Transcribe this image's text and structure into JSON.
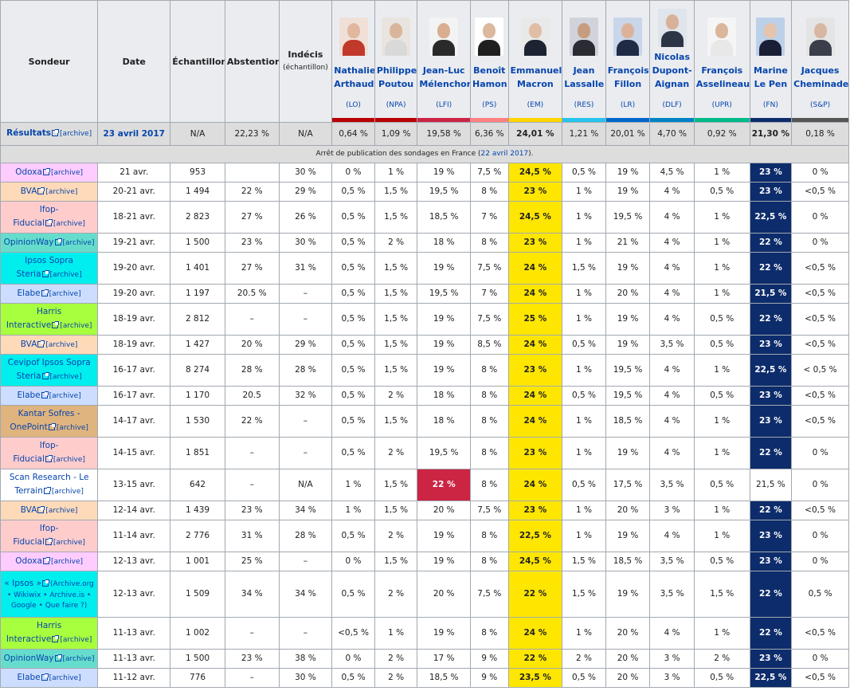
{
  "header": {
    "sondeur": "Sondeur",
    "date": "Date",
    "echantillon": "Échantillon",
    "abstention": "Abstention",
    "indecis": "Indécis",
    "indecis_sub": "(échantillon)"
  },
  "candidates": [
    {
      "first": "Nathalie",
      "last": "Arthaud",
      "party": "(LO)",
      "color": "#bb0000",
      "skin": "#e2b7a0",
      "clothes": "#c0392b",
      "bg": "#f0e0d8"
    },
    {
      "first": "Philippe",
      "last": "Poutou",
      "party": "(NPA)",
      "color": "#bb0000",
      "skin": "#d8b59b",
      "clothes": "#d9d9d9",
      "bg": "#e9e4df"
    },
    {
      "first": "Jean-Luc",
      "last": "Mélenchon",
      "party": "(LFI)",
      "color": "#cc2443",
      "skin": "#d9ad90",
      "clothes": "#2a2a2a",
      "bg": "#f3f3f3"
    },
    {
      "first": "Benoît",
      "last": "Hamon",
      "party": "(PS)",
      "color": "#ff8080",
      "skin": "#dcb89e",
      "clothes": "#1f1f1f",
      "bg": "#ffffff"
    },
    {
      "first": "Emmanuel",
      "last": "Macron",
      "party": "(EM)",
      "color": "#ffd600",
      "skin": "#e0bda5",
      "clothes": "#1c2433",
      "bg": "#e9e9e9"
    },
    {
      "first": "Jean",
      "last": "Lassalle",
      "party": "(RES)",
      "color": "#26c4ec",
      "skin": "#c89c80",
      "clothes": "#2b2b33",
      "bg": "#d0d4da"
    },
    {
      "first": "François",
      "last": "Fillon",
      "party": "(LR)",
      "color": "#0066cc",
      "skin": "#dcb39a",
      "clothes": "#1f2a44",
      "bg": "#c9d6ea"
    },
    {
      "first": "Nicolas",
      "last": "Dupont-Aignan",
      "party": "(DLF)",
      "color": "#0082c4",
      "skin": "#d9b199",
      "clothes": "#2c3546",
      "bg": "#dfe5ea"
    },
    {
      "first": "François",
      "last": "Asselineau",
      "party": "(UPR)",
      "color": "#00bb88",
      "skin": "#dbb69c",
      "clothes": "#e8e8e8",
      "bg": "#f5f5f5"
    },
    {
      "first": "Marine",
      "last": "Le Pen",
      "party": "(FN)",
      "color": "#0d2c6b",
      "skin": "#e6c3ab",
      "clothes": "#1a1f36",
      "bg": "#bcd0e8"
    },
    {
      "first": "Jacques",
      "last": "Cheminade",
      "party": "(S&P)",
      "color": "#555555",
      "skin": "#d8b7a2",
      "clothes": "#3a3f4a",
      "bg": "#e4e4e4"
    }
  ],
  "results": {
    "label": "Résultats",
    "archive": "[archive]",
    "date": "23 avril 2017",
    "echantillon": "N/A",
    "abstention": "22,23 %",
    "indecis": "N/A",
    "values": [
      "0,64 %",
      "1,09 %",
      "19,58 %",
      "6,36 %",
      "24,01 %",
      "1,21 %",
      "20,01 %",
      "4,70 %",
      "0,92 %",
      "21,30 %",
      "0,18 %"
    ]
  },
  "note": {
    "text": "Arrêt de publication des sondages en France (",
    "link": "22 avril 2017",
    "end": ")."
  },
  "archive_label": "[archive]",
  "rows": [
    {
      "p1": "Odoxa",
      "p2": "",
      "bg": "#ffccff",
      "date": "21 avr.",
      "n": "953",
      "abs": "",
      "ind": "30 %",
      "v": [
        "0 %",
        "1 %",
        "19 %",
        "7,5 %",
        "24,5 %",
        "0,5 %",
        "19 %",
        "4,5 %",
        "1 %",
        "23 %",
        "0 %"
      ],
      "hi": [
        [
          4,
          "ylw"
        ],
        [
          9,
          "blu"
        ]
      ]
    },
    {
      "p1": "BVA",
      "p2": "",
      "bg": "#ffdab9",
      "date": "20-21 avr.",
      "n": "1 494",
      "abs": "22 %",
      "ind": "29 %",
      "v": [
        "0,5 %",
        "1,5 %",
        "19,5 %",
        "8 %",
        "23 %",
        "1 %",
        "19 %",
        "4 %",
        "0,5 %",
        "23 %",
        "<0,5 %"
      ],
      "hi": [
        [
          4,
          "ylw"
        ],
        [
          9,
          "blu"
        ]
      ]
    },
    {
      "p1": "Ifop-",
      "p2": "Fiducial",
      "bg": "#ffcccc",
      "date": "18-21 avr.",
      "n": "2 823",
      "abs": "27 %",
      "ind": "26 %",
      "v": [
        "0,5 %",
        "1,5 %",
        "18,5 %",
        "7 %",
        "24,5 %",
        "1 %",
        "19,5 %",
        "4 %",
        "1 %",
        "22,5 %",
        "0 %"
      ],
      "hi": [
        [
          4,
          "ylw"
        ],
        [
          9,
          "blu"
        ]
      ]
    },
    {
      "p1": "OpinionWay",
      "p2": "",
      "bg": "#66ddcc",
      "date": "19-21 avr.",
      "n": "1 500",
      "abs": "23 %",
      "ind": "30 %",
      "v": [
        "0,5 %",
        "2 %",
        "18 %",
        "8 %",
        "23 %",
        "1 %",
        "21 %",
        "4 %",
        "1 %",
        "22 %",
        "0 %"
      ],
      "hi": [
        [
          4,
          "ylw"
        ],
        [
          9,
          "blu"
        ]
      ]
    },
    {
      "p1": "Ipsos Sopra",
      "p2": "Steria",
      "bg": "#00eeee",
      "date": "19-20 avr.",
      "n": "1 401",
      "abs": "27 %",
      "ind": "31 %",
      "v": [
        "0,5 %",
        "1,5 %",
        "19 %",
        "7,5 %",
        "24 %",
        "1,5 %",
        "19 %",
        "4 %",
        "1 %",
        "22 %",
        "<0,5 %"
      ],
      "hi": [
        [
          4,
          "ylw"
        ],
        [
          9,
          "blu"
        ]
      ]
    },
    {
      "p1": "Elabe",
      "p2": "",
      "bg": "#ccddff",
      "date": "19-20 avr.",
      "n": "1 197",
      "abs": "20.5 %",
      "ind": "–",
      "v": [
        "0,5 %",
        "1,5 %",
        "19,5 %",
        "7 %",
        "24 %",
        "1 %",
        "20 %",
        "4 %",
        "1 %",
        "21,5 %",
        "<0,5 %"
      ],
      "hi": [
        [
          4,
          "ylw"
        ],
        [
          9,
          "blu"
        ]
      ]
    },
    {
      "p1": "Harris",
      "p2": "Interactive",
      "bg": "#a8ff3e",
      "date": "18-19 avr.",
      "n": "2 812",
      "abs": "–",
      "ind": "–",
      "v": [
        "0,5 %",
        "1,5 %",
        "19 %",
        "7,5 %",
        "25 %",
        "1 %",
        "19 %",
        "4 %",
        "0,5 %",
        "22 %",
        "<0,5 %"
      ],
      "hi": [
        [
          4,
          "ylw"
        ],
        [
          9,
          "blu"
        ]
      ]
    },
    {
      "p1": "BVA",
      "p2": "",
      "bg": "#ffdab9",
      "date": "18-19 avr.",
      "n": "1 427",
      "abs": "20 %",
      "ind": "29 %",
      "v": [
        "0,5 %",
        "1,5 %",
        "19 %",
        "8,5 %",
        "24 %",
        "0,5 %",
        "19 %",
        "3,5 %",
        "0,5 %",
        "23 %",
        "<0,5 %"
      ],
      "hi": [
        [
          4,
          "ylw"
        ],
        [
          9,
          "blu"
        ]
      ]
    },
    {
      "p1": "Cevipof Ipsos Sopra",
      "p2": "Steria",
      "bg": "#00eeee",
      "date": "16-17 avr.",
      "n": "8 274",
      "abs": "28 %",
      "ind": "28 %",
      "v": [
        "0,5 %",
        "1,5 %",
        "19 %",
        "8 %",
        "23 %",
        "1 %",
        "19,5 %",
        "4 %",
        "1 %",
        "22,5 %",
        "< 0,5 %"
      ],
      "hi": [
        [
          4,
          "ylw"
        ],
        [
          9,
          "blu"
        ]
      ]
    },
    {
      "p1": "Elabe",
      "p2": "",
      "bg": "#ccddff",
      "date": "16-17 avr.",
      "n": "1 170",
      "abs": "20.5",
      "ind": "32 %",
      "v": [
        "0,5 %",
        "2 %",
        "18 %",
        "8 %",
        "24 %",
        "0,5 %",
        "19,5 %",
        "4 %",
        "0,5 %",
        "23 %",
        "<0,5 %"
      ],
      "hi": [
        [
          4,
          "ylw"
        ],
        [
          9,
          "blu"
        ]
      ]
    },
    {
      "p1": "Kantar Sofres -",
      "p2": "OnePoint",
      "bg": "#e0b47e",
      "date": "14-17 avr.",
      "n": "1 530",
      "abs": "22 %",
      "ind": "–",
      "v": [
        "0,5 %",
        "1,5 %",
        "18 %",
        "8 %",
        "24 %",
        "1 %",
        "18,5 %",
        "4 %",
        "1 %",
        "23 %",
        "<0,5 %"
      ],
      "hi": [
        [
          4,
          "ylw"
        ],
        [
          9,
          "blu"
        ]
      ]
    },
    {
      "p1": "Ifop-",
      "p2": "Fiducial",
      "bg": "#ffcccc",
      "date": "14-15 avr.",
      "n": "1 851",
      "abs": "–",
      "ind": "–",
      "v": [
        "0,5 %",
        "2 %",
        "19,5 %",
        "8 %",
        "23 %",
        "1 %",
        "19 %",
        "4 %",
        "1 %",
        "22 %",
        "0 %"
      ],
      "hi": [
        [
          4,
          "ylw"
        ],
        [
          9,
          "blu"
        ]
      ]
    },
    {
      "p1": "Scan Research - Le",
      "p2": "Terrain",
      "bg": "#ffffff",
      "date": "13-15 avr.",
      "n": "642",
      "abs": "–",
      "ind": "N/A",
      "v": [
        "1 %",
        "1,5 %",
        "22 %",
        "8 %",
        "24 %",
        "0,5 %",
        "17,5 %",
        "3,5 %",
        "0,5 %",
        "21,5 %",
        "0 %"
      ],
      "hi": [
        [
          2,
          "red"
        ],
        [
          4,
          "ylw"
        ]
      ]
    },
    {
      "p1": "BVA",
      "p2": "",
      "bg": "#ffdab9",
      "date": "12-14 avr.",
      "n": "1 439",
      "abs": "23 %",
      "ind": "34 %",
      "v": [
        "1 %",
        "1,5 %",
        "20 %",
        "7,5 %",
        "23 %",
        "1 %",
        "20 %",
        "3 %",
        "1 %",
        "22 %",
        "<0,5 %"
      ],
      "hi": [
        [
          4,
          "ylw"
        ],
        [
          9,
          "blu"
        ]
      ]
    },
    {
      "p1": "Ifop-",
      "p2": "Fiducial",
      "bg": "#ffcccc",
      "date": "11-14 avr.",
      "n": "2 776",
      "abs": "31 %",
      "ind": "28 %",
      "v": [
        "0,5 %",
        "2 %",
        "19 %",
        "8 %",
        "22,5 %",
        "1 %",
        "19 %",
        "4 %",
        "1 %",
        "23 %",
        "0 %"
      ],
      "hi": [
        [
          4,
          "ylw"
        ],
        [
          9,
          "blu"
        ]
      ]
    },
    {
      "p1": "Odoxa",
      "p2": "",
      "bg": "#ffccff",
      "date": "12-13 avr.",
      "n": "1 001",
      "abs": "25 %",
      "ind": "–",
      "v": [
        "0 %",
        "1,5 %",
        "19 %",
        "8 %",
        "24,5 %",
        "1,5 %",
        "18,5 %",
        "3,5 %",
        "0,5 %",
        "23 %",
        "0 %"
      ],
      "hi": [
        [
          4,
          "ylw"
        ],
        [
          9,
          "blu"
        ]
      ]
    },
    {
      "p1": "« Ipsos »",
      "p2": "",
      "ipsos": true,
      "bg": "#00eeee",
      "date": "12-13 avr.",
      "n": "1 509",
      "abs": "34 %",
      "ind": "34 %",
      "v": [
        "0,5 %",
        "2 %",
        "20 %",
        "7,5 %",
        "22 %",
        "1,5 %",
        "19 %",
        "3,5 %",
        "1,5 %",
        "22 %",
        "0,5 %"
      ],
      "hi": [
        [
          4,
          "ylw"
        ],
        [
          9,
          "blu"
        ]
      ]
    },
    {
      "p1": "Harris",
      "p2": "Interactive",
      "bg": "#a8ff3e",
      "date": "11-13 avr.",
      "n": "1 002",
      "abs": "–",
      "ind": "–",
      "v": [
        "<0,5 %",
        "1 %",
        "19 %",
        "8 %",
        "24 %",
        "1 %",
        "20 %",
        "4 %",
        "1 %",
        "22 %",
        "<0,5 %"
      ],
      "hi": [
        [
          4,
          "ylw"
        ],
        [
          9,
          "blu"
        ]
      ]
    },
    {
      "p1": "OpinionWay",
      "p2": "",
      "bg": "#66ddcc",
      "date": "11-13 avr.",
      "n": "1 500",
      "abs": "23 %",
      "ind": "38 %",
      "v": [
        "0 %",
        "2 %",
        "17 %",
        "9 %",
        "22 %",
        "2 %",
        "20 %",
        "3 %",
        "2 %",
        "23 %",
        "0 %"
      ],
      "hi": [
        [
          4,
          "ylw"
        ],
        [
          9,
          "blu"
        ]
      ]
    },
    {
      "p1": "Elabe",
      "p2": "",
      "bg": "#ccddff",
      "date": "11-12 avr.",
      "n": "776",
      "abs": "–",
      "ind": "30 %",
      "v": [
        "0,5 %",
        "2 %",
        "18,5 %",
        "9 %",
        "23,5 %",
        "0,5 %",
        "20 %",
        "3 %",
        "0,5 %",
        "22,5 %",
        "<0,5 %"
      ],
      "hi": [
        [
          4,
          "ylw"
        ],
        [
          9,
          "blu"
        ]
      ]
    }
  ],
  "ipsos_extra": {
    "archiveorg": "(Archive.org",
    "line2": "• Wikiwix • Archive.is •",
    "line3": "Google • Que faire ?)"
  }
}
